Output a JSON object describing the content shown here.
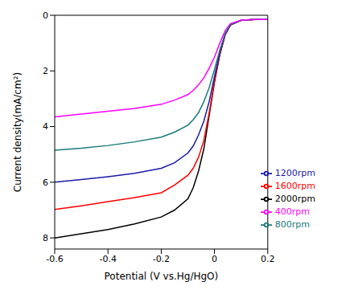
{
  "chart_data": {
    "type": "line",
    "xlabel": "Potential (V vs.Hg/HgO)",
    "ylabel": "Current density(mA/cm²)",
    "x": [
      -0.6,
      -0.5,
      -0.4,
      -0.3,
      -0.2,
      -0.15,
      -0.1,
      -0.08,
      -0.06,
      -0.04,
      -0.02,
      0,
      0.02,
      0.04,
      0.06,
      0.1,
      0.15,
      0.2
    ],
    "series": [
      {
        "name": "2000rpm",
        "color": "#000000",
        "values": [
          8.0,
          7.85,
          7.7,
          7.5,
          7.25,
          7.0,
          6.6,
          6.2,
          5.6,
          4.8,
          3.6,
          2.4,
          1.4,
          0.7,
          0.35,
          0.18,
          0.15,
          0.15
        ]
      },
      {
        "name": "1600rpm",
        "color": "#ff0000",
        "values": [
          6.98,
          6.85,
          6.7,
          6.55,
          6.38,
          6.1,
          5.75,
          5.5,
          5.1,
          4.5,
          3.5,
          2.35,
          1.4,
          0.7,
          0.35,
          0.18,
          0.15,
          0.15
        ]
      },
      {
        "name": "1200rpm",
        "color": "#1a1aa8",
        "values": [
          6.0,
          5.9,
          5.8,
          5.68,
          5.5,
          5.3,
          4.95,
          4.7,
          4.3,
          3.8,
          3.1,
          2.2,
          1.35,
          0.68,
          0.34,
          0.18,
          0.15,
          0.15
        ]
      },
      {
        "name": "800rpm",
        "color": "#1a7a7a",
        "values": [
          4.85,
          4.78,
          4.68,
          4.55,
          4.38,
          4.2,
          3.95,
          3.75,
          3.5,
          3.1,
          2.6,
          1.95,
          1.25,
          0.65,
          0.33,
          0.18,
          0.15,
          0.15
        ]
      },
      {
        "name": "400rpm",
        "color": "#ff00ff",
        "values": [
          3.65,
          3.55,
          3.45,
          3.35,
          3.2,
          3.05,
          2.85,
          2.7,
          2.5,
          2.25,
          1.9,
          1.5,
          1.0,
          0.55,
          0.3,
          0.18,
          0.15,
          0.15
        ]
      }
    ],
    "xlim": [
      -0.6,
      0.2
    ],
    "xticks": [
      -0.6,
      -0.4,
      -0.2,
      0,
      0.2
    ],
    "ylim": [
      8.4,
      0
    ],
    "yticks": [
      0,
      2,
      4,
      6,
      8
    ],
    "legend": "lower right",
    "grid": false
  }
}
